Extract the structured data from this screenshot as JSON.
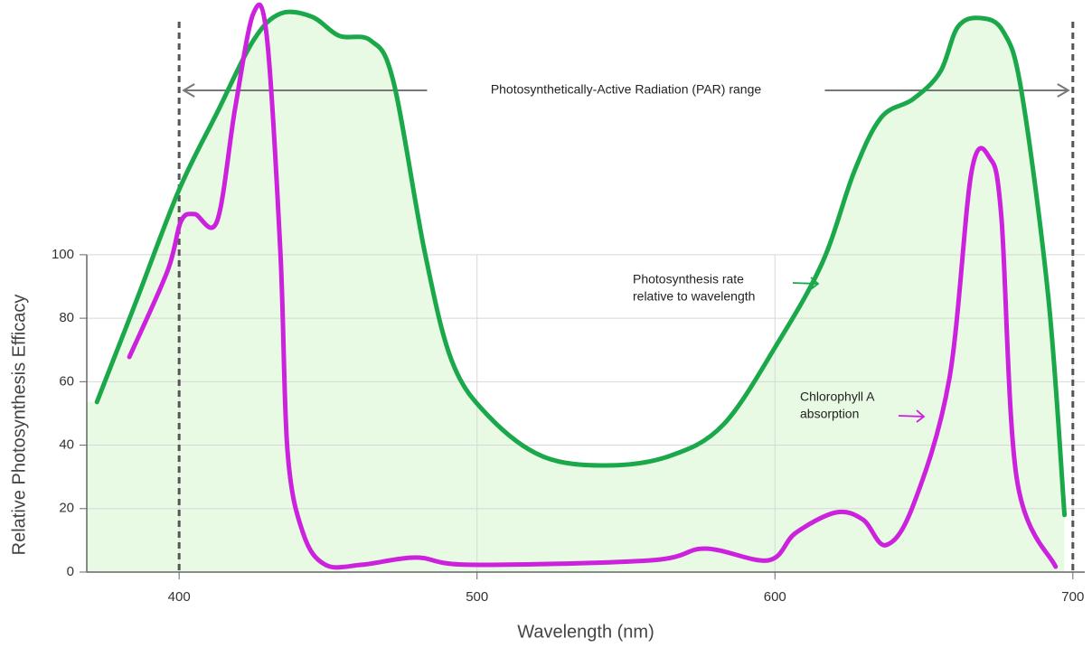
{
  "chart_data": {
    "type": "line",
    "x_label": "Wavelength (nm)",
    "y_label": "Relative Photosynthesis Efficacy",
    "xlim": [
      369,
      704
    ],
    "ylim": [
      0,
      178
    ],
    "xticks": [
      400,
      500,
      600,
      700
    ],
    "yticks": [
      0,
      20,
      40,
      60,
      80,
      100
    ],
    "grid": true,
    "par_range": [
      400,
      700
    ],
    "par_label": "Photosynthetically-Active Radiation (PAR) range",
    "series": [
      {
        "color": "#1aa84a",
        "fill": "#e8f9e4",
        "x": [
          372.4,
          385.4,
          400,
          412.7,
          424.9,
          434,
          444.6,
          453.7,
          464.3,
          471.9,
          482.5,
          491.6,
          503.7,
          521.9,
          543.2,
          564.4,
          582.6,
          600.8,
          616,
          626.6,
          635.7,
          646.3,
          655.4,
          661.4,
          669,
          676.6,
          682.7,
          691.8,
          697.2
        ],
        "values": [
          53.6,
          84.9,
          120.5,
          144.7,
          167.5,
          176,
          175,
          169,
          167.5,
          154.7,
          100.6,
          66.4,
          49.3,
          36.5,
          33.6,
          36.5,
          46.4,
          72,
          97.7,
          126.2,
          143.3,
          149,
          157.5,
          171.8,
          174.6,
          170.4,
          151.8,
          86.3,
          18
        ]
      },
      {
        "color": "#cc22dd",
        "x": [
          383.3,
          396.1,
          400.6,
          405.2,
          412.7,
          418.8,
          424.9,
          429.4,
          434,
          436.4,
          441.6,
          449.1,
          461.3,
          479.5,
          497.6,
          558.3,
          576.5,
          597.8,
          606.9,
          620.5,
          629.6,
          637.2,
          646.3,
          658.5,
          666,
          672.1,
          676,
          681.2,
          694.2
        ],
        "values": [
          67.8,
          94.9,
          110.5,
          112.8,
          110.5,
          146.2,
          176,
          169,
          100.6,
          37.9,
          12.3,
          2.3,
          2.3,
          4.6,
          2.3,
          3.7,
          7.4,
          3.7,
          12.3,
          18.8,
          16.5,
          8.5,
          20.8,
          60.7,
          126.2,
          130.5,
          112,
          29.3,
          1.7
        ]
      }
    ],
    "annotations": [
      {
        "lines": [
          "Photosynthesis rate",
          "relative to wavelength"
        ],
        "color": "#1aa84a"
      },
      {
        "lines": [
          "Chlorophyll A",
          "absorption"
        ],
        "color": "#cc22dd"
      }
    ]
  }
}
